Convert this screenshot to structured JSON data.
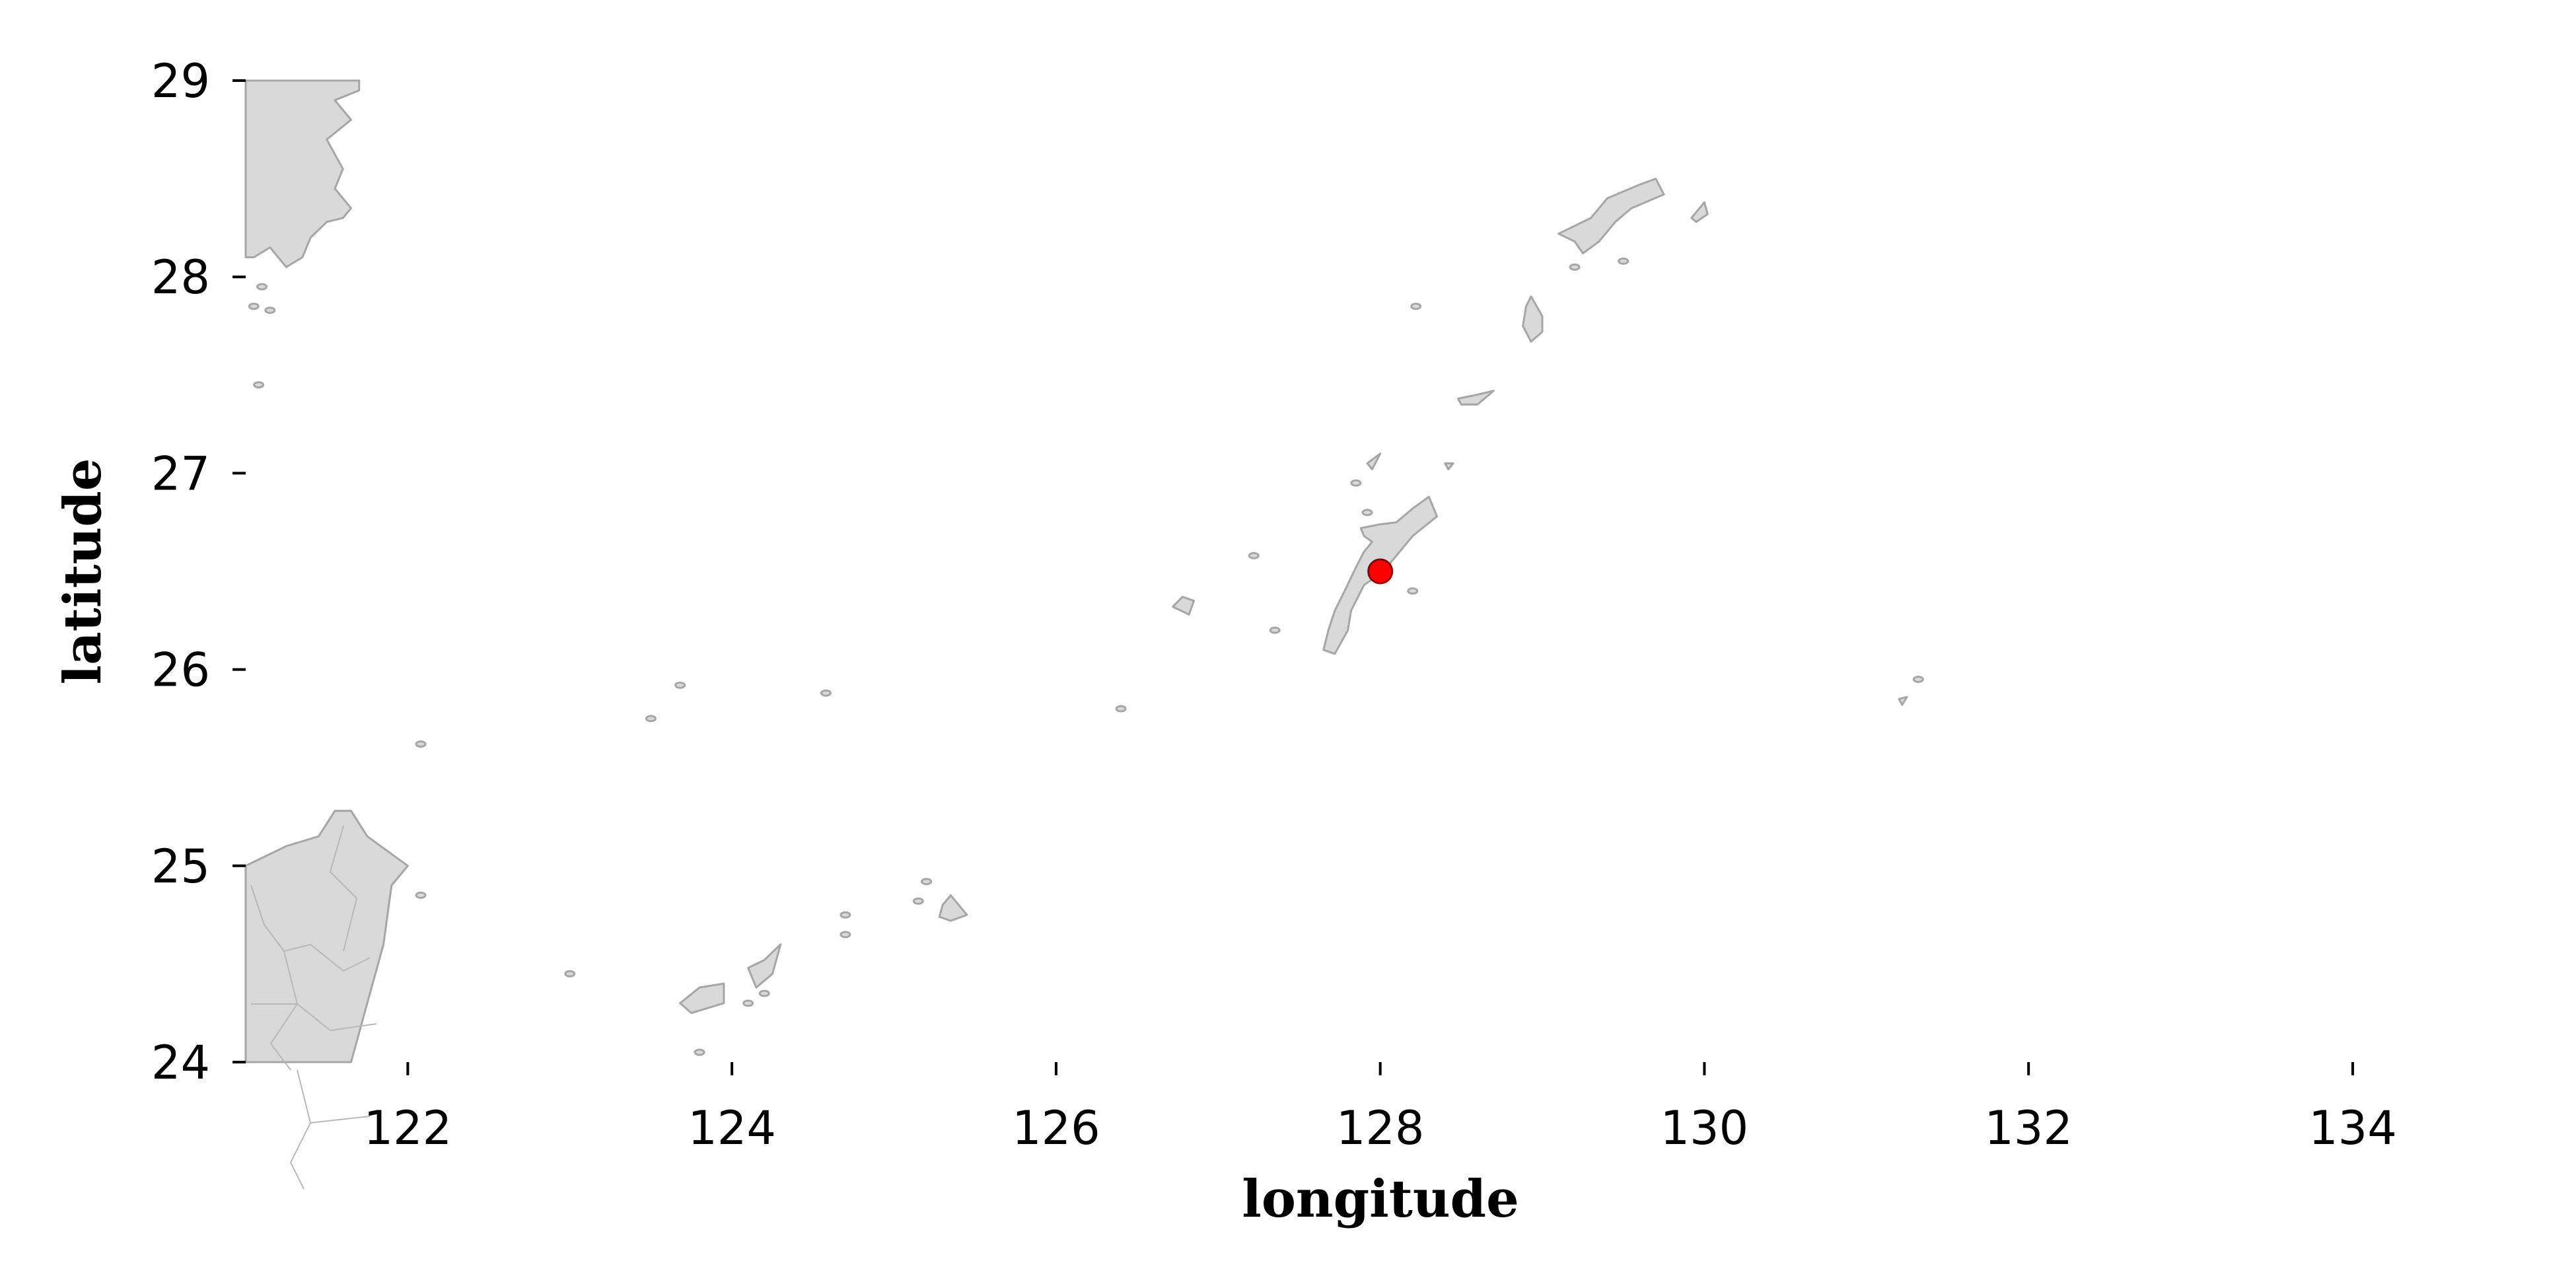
{
  "axes": {
    "xlabel": "longitude",
    "ylabel": "latitude",
    "xlim": [
      121,
      135.5
    ],
    "ylim": [
      24,
      29
    ],
    "xticks": [
      122,
      124,
      126,
      128,
      130,
      132,
      134
    ],
    "yticks": [
      24,
      25,
      26,
      27,
      28,
      29
    ],
    "xtick_labels": [
      "122",
      "124",
      "126",
      "128",
      "130",
      "132",
      "134"
    ],
    "ytick_labels": [
      "24",
      "25",
      "26",
      "27",
      "28",
      "29"
    ]
  },
  "marker": {
    "lon": 128.0,
    "lat": 26.5,
    "color": "#ff0000",
    "edge_color": "#8b0000"
  },
  "colors": {
    "land": "#d9d9d9",
    "coast": "#a6a6a6",
    "background": "#ffffff"
  },
  "landmasses": [
    {
      "name": "china-coast-north",
      "points": [
        [
          121.0,
          29.0
        ],
        [
          121.7,
          29.0
        ],
        [
          121.7,
          28.95
        ],
        [
          121.55,
          28.9
        ],
        [
          121.65,
          28.8
        ],
        [
          121.5,
          28.7
        ],
        [
          121.6,
          28.55
        ],
        [
          121.55,
          28.45
        ],
        [
          121.65,
          28.35
        ],
        [
          121.6,
          28.3
        ],
        [
          121.5,
          28.28
        ],
        [
          121.4,
          28.2
        ],
        [
          121.35,
          28.1
        ],
        [
          121.25,
          28.05
        ],
        [
          121.15,
          28.15
        ],
        [
          121.05,
          28.1
        ],
        [
          121.0,
          28.1
        ]
      ]
    },
    {
      "name": "china-coast-south",
      "points": [
        [
          121.0,
          25.0
        ],
        [
          121.25,
          25.1
        ],
        [
          121.45,
          25.15
        ],
        [
          121.55,
          25.28
        ],
        [
          121.65,
          25.28
        ],
        [
          121.75,
          25.15
        ],
        [
          122.0,
          25.0
        ],
        [
          121.9,
          24.9
        ],
        [
          121.85,
          24.6
        ],
        [
          121.8,
          24.45
        ],
        [
          121.75,
          24.3
        ],
        [
          121.7,
          24.15
        ],
        [
          121.65,
          24.0
        ],
        [
          121.0,
          24.0
        ]
      ]
    },
    {
      "name": "okinawa-main",
      "points": [
        [
          128.3,
          26.88
        ],
        [
          128.35,
          26.78
        ],
        [
          128.2,
          26.68
        ],
        [
          128.1,
          26.58
        ],
        [
          128.02,
          26.5
        ],
        [
          127.9,
          26.43
        ],
        [
          127.82,
          26.3
        ],
        [
          127.8,
          26.2
        ],
        [
          127.72,
          26.08
        ],
        [
          127.65,
          26.1
        ],
        [
          127.68,
          26.2
        ],
        [
          127.72,
          26.3
        ],
        [
          127.78,
          26.4
        ],
        [
          127.85,
          26.52
        ],
        [
          127.9,
          26.6
        ],
        [
          127.95,
          26.65
        ],
        [
          127.9,
          26.68
        ],
        [
          127.88,
          26.72
        ],
        [
          128.0,
          26.74
        ],
        [
          128.1,
          26.75
        ],
        [
          128.2,
          26.82
        ]
      ]
    },
    {
      "name": "amami-oshima",
      "points": [
        [
          129.7,
          28.5
        ],
        [
          129.75,
          28.42
        ],
        [
          129.55,
          28.35
        ],
        [
          129.45,
          28.28
        ],
        [
          129.35,
          28.18
        ],
        [
          129.25,
          28.12
        ],
        [
          129.2,
          28.18
        ],
        [
          129.1,
          28.22
        ],
        [
          129.3,
          28.3
        ],
        [
          129.4,
          28.4
        ],
        [
          129.6,
          28.47
        ]
      ]
    },
    {
      "name": "kikai-jima",
      "points": [
        [
          130.0,
          28.38
        ],
        [
          130.02,
          28.32
        ],
        [
          129.95,
          28.28
        ],
        [
          129.92,
          28.3
        ]
      ]
    },
    {
      "name": "tokunoshima",
      "points": [
        [
          128.93,
          27.9
        ],
        [
          129.0,
          27.8
        ],
        [
          129.0,
          27.72
        ],
        [
          128.93,
          27.67
        ],
        [
          128.88,
          27.75
        ],
        [
          128.9,
          27.85
        ]
      ]
    },
    {
      "name": "okinoerabu",
      "points": [
        [
          128.7,
          27.42
        ],
        [
          128.6,
          27.35
        ],
        [
          128.5,
          27.35
        ],
        [
          128.48,
          27.38
        ],
        [
          128.6,
          27.4
        ]
      ]
    },
    {
      "name": "yoron",
      "points": [
        [
          128.45,
          27.05
        ],
        [
          128.42,
          27.02
        ],
        [
          128.4,
          27.05
        ]
      ]
    },
    {
      "name": "iheya",
      "points": [
        [
          128.0,
          27.1
        ],
        [
          127.95,
          27.02
        ],
        [
          127.92,
          27.05
        ]
      ]
    },
    {
      "name": "kume-jima",
      "points": [
        [
          126.85,
          26.35
        ],
        [
          126.82,
          26.28
        ],
        [
          126.72,
          26.32
        ],
        [
          126.78,
          26.37
        ]
      ]
    },
    {
      "name": "miyako-jima",
      "points": [
        [
          125.35,
          24.85
        ],
        [
          125.45,
          24.75
        ],
        [
          125.35,
          24.72
        ],
        [
          125.28,
          24.74
        ],
        [
          125.3,
          24.8
        ]
      ]
    },
    {
      "name": "ishigaki",
      "points": [
        [
          124.3,
          24.6
        ],
        [
          124.25,
          24.45
        ],
        [
          124.15,
          24.38
        ],
        [
          124.1,
          24.48
        ],
        [
          124.2,
          24.52
        ]
      ]
    },
    {
      "name": "iriomote",
      "points": [
        [
          123.95,
          24.4
        ],
        [
          123.95,
          24.3
        ],
        [
          123.75,
          24.25
        ],
        [
          123.68,
          24.3
        ],
        [
          123.8,
          24.38
        ]
      ]
    },
    {
      "name": "minami-daito",
      "points": [
        [
          131.25,
          25.86
        ],
        [
          131.22,
          25.82
        ],
        [
          131.2,
          25.85
        ]
      ]
    }
  ],
  "islets": [
    [
      121.1,
      27.95
    ],
    [
      121.05,
      27.85
    ],
    [
      121.15,
      27.83
    ],
    [
      121.08,
      27.45
    ],
    [
      123.0,
      24.45
    ],
    [
      123.5,
      25.75
    ],
    [
      123.68,
      25.92
    ],
    [
      124.58,
      25.88
    ],
    [
      124.7,
      24.75
    ],
    [
      124.7,
      24.65
    ],
    [
      124.2,
      24.35
    ],
    [
      124.1,
      24.3
    ],
    [
      123.8,
      24.05
    ],
    [
      125.15,
      24.82
    ],
    [
      125.2,
      24.92
    ],
    [
      127.22,
      26.58
    ],
    [
      127.35,
      26.2
    ],
    [
      127.85,
      26.95
    ],
    [
      127.92,
      26.8
    ],
    [
      128.2,
      26.4
    ],
    [
      128.22,
      27.85
    ],
    [
      129.5,
      28.08
    ],
    [
      129.2,
      28.05
    ],
    [
      131.32,
      25.95
    ],
    [
      126.4,
      25.8
    ],
    [
      122.08,
      24.85
    ],
    [
      122.08,
      25.62
    ]
  ]
}
